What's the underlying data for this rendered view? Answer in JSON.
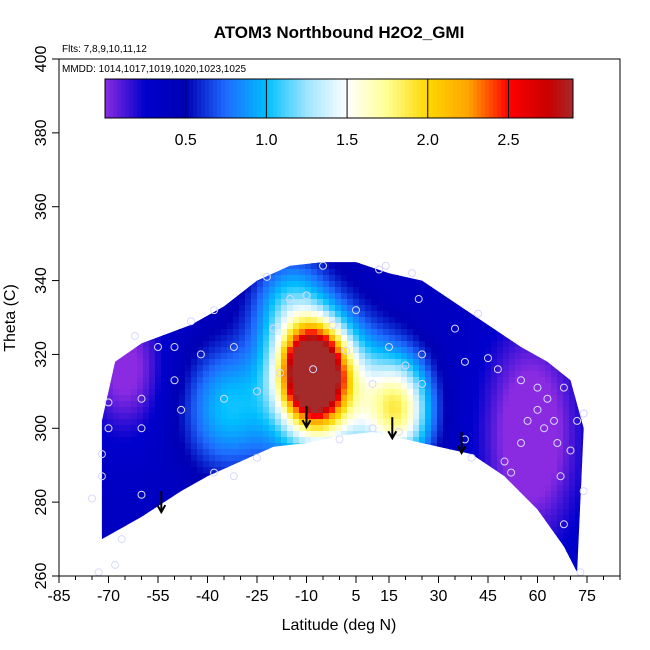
{
  "chart_data": {
    "type": "heatmap",
    "title": "ATOM3 Northbound H2O2_GMI",
    "annotations": {
      "flights": "Flts: 7,8,9,10,11,12",
      "dates": "MMDD: 1014,1017,1019,1020,1023,1025"
    },
    "xlabel": "Latitude (deg N)",
    "ylabel": "Theta (C)",
    "xlim": [
      -85,
      85
    ],
    "ylim": [
      260,
      400
    ],
    "x_ticks": [
      "-85",
      "-70",
      "-55",
      "-40",
      "-25",
      "-10",
      "5",
      "15",
      "30",
      "45",
      "60",
      "75"
    ],
    "y_ticks": [
      "260",
      "280",
      "300",
      "320",
      "340",
      "360",
      "380",
      "400"
    ],
    "colorbar": {
      "range": [
        0,
        2.9
      ],
      "tick_labels": [
        "0.5",
        "1.0",
        "1.5",
        "2.0",
        "2.5"
      ],
      "tick_values": [
        0.5,
        1.0,
        1.5,
        2.0,
        2.5
      ],
      "stops": [
        {
          "v": 0.0,
          "c": "#8a2be2"
        },
        {
          "v": 0.25,
          "c": "#0000cd"
        },
        {
          "v": 0.5,
          "c": "#0000b4"
        },
        {
          "v": 0.75,
          "c": "#1e6cff"
        },
        {
          "v": 1.0,
          "c": "#00bfff"
        },
        {
          "v": 1.25,
          "c": "#9fe4ff"
        },
        {
          "v": 1.5,
          "c": "#ffffff"
        },
        {
          "v": 1.75,
          "c": "#ffff90"
        },
        {
          "v": 2.0,
          "c": "#ffd700"
        },
        {
          "v": 2.25,
          "c": "#ffa500"
        },
        {
          "v": 2.5,
          "c": "#ff0000"
        },
        {
          "v": 2.75,
          "c": "#c80000"
        },
        {
          "v": 2.9,
          "c": "#a52a2a"
        }
      ]
    },
    "coverage": {
      "top": [
        [
          -72,
          302
        ],
        [
          -68,
          318
        ],
        [
          -60,
          323
        ],
        [
          -45,
          328
        ],
        [
          -35,
          333
        ],
        [
          -25,
          340
        ],
        [
          -15,
          344
        ],
        [
          -5,
          345
        ],
        [
          5,
          345
        ],
        [
          15,
          342
        ],
        [
          25,
          340
        ],
        [
          35,
          334
        ],
        [
          45,
          328
        ],
        [
          55,
          322
        ],
        [
          63,
          318
        ],
        [
          70,
          313
        ],
        [
          74,
          300
        ]
      ],
      "bottom": [
        [
          -72,
          270
        ],
        [
          -60,
          276
        ],
        [
          -48,
          283
        ],
        [
          -40,
          287
        ],
        [
          -30,
          291
        ],
        [
          -20,
          295
        ],
        [
          -10,
          296
        ],
        [
          0,
          298
        ],
        [
          10,
          299
        ],
        [
          20,
          297
        ],
        [
          30,
          295
        ],
        [
          40,
          293
        ],
        [
          50,
          287
        ],
        [
          60,
          278
        ],
        [
          68,
          268
        ],
        [
          72,
          261
        ]
      ]
    },
    "field_hotspots": [
      {
        "x": -8,
        "y": 315,
        "v": 2.8,
        "sx": 6,
        "sy": 8
      },
      {
        "x": -5,
        "y": 310,
        "v": 1.4,
        "sx": 12,
        "sy": 14
      },
      {
        "x": 18,
        "y": 305,
        "v": 1.3,
        "sx": 7,
        "sy": 10
      },
      {
        "x": -35,
        "y": 305,
        "v": 0.6,
        "sx": 9,
        "sy": 12
      },
      {
        "x": -15,
        "y": 333,
        "v": 0.6,
        "sx": 8,
        "sy": 10
      },
      {
        "x": 58,
        "y": 298,
        "v": -0.5,
        "sx": 10,
        "sy": 20
      },
      {
        "x": -65,
        "y": 316,
        "v": -0.4,
        "sx": 8,
        "sy": 12
      }
    ],
    "field_base": 0.35,
    "observations": [
      [
        -70,
        307
      ],
      [
        -70,
        300
      ],
      [
        -72,
        293
      ],
      [
        -72,
        287
      ],
      [
        -75,
        281
      ],
      [
        -73,
        261
      ],
      [
        -68,
        263
      ],
      [
        -66,
        270
      ],
      [
        -60,
        282
      ],
      [
        -60,
        300
      ],
      [
        -60,
        308
      ],
      [
        -62,
        325
      ],
      [
        -55,
        322
      ],
      [
        -50,
        322
      ],
      [
        -50,
        313
      ],
      [
        -48,
        305
      ],
      [
        -45,
        329
      ],
      [
        -42,
        320
      ],
      [
        -38,
        332
      ],
      [
        -35,
        308
      ],
      [
        -32,
        322
      ],
      [
        -32,
        287
      ],
      [
        -38,
        288
      ],
      [
        -25,
        310
      ],
      [
        -25,
        292
      ],
      [
        -22,
        341
      ],
      [
        -20,
        327
      ],
      [
        -18,
        315
      ],
      [
        -15,
        335
      ],
      [
        -10,
        336
      ],
      [
        -8,
        316
      ],
      [
        -5,
        344
      ],
      [
        -2,
        328
      ],
      [
        0,
        297
      ],
      [
        2,
        321
      ],
      [
        5,
        332
      ],
      [
        10,
        312
      ],
      [
        10,
        300
      ],
      [
        12,
        343
      ],
      [
        14,
        344
      ],
      [
        15,
        322
      ],
      [
        18,
        299
      ],
      [
        20,
        317
      ],
      [
        22,
        342
      ],
      [
        24,
        335
      ],
      [
        25,
        320
      ],
      [
        25,
        312
      ],
      [
        35,
        327
      ],
      [
        38,
        318
      ],
      [
        38,
        297
      ],
      [
        40,
        292
      ],
      [
        42,
        331
      ],
      [
        45,
        319
      ],
      [
        48,
        316
      ],
      [
        50,
        291
      ],
      [
        52,
        288
      ],
      [
        55,
        313
      ],
      [
        55,
        296
      ],
      [
        57,
        302
      ],
      [
        60,
        311
      ],
      [
        60,
        305
      ],
      [
        62,
        300
      ],
      [
        63,
        308
      ],
      [
        65,
        302
      ],
      [
        66,
        296
      ],
      [
        67,
        287
      ],
      [
        68,
        311
      ],
      [
        68,
        274
      ],
      [
        70,
        294
      ],
      [
        72,
        302
      ],
      [
        74,
        304
      ],
      [
        74,
        283
      ],
      [
        73,
        261
      ]
    ],
    "arrows": [
      [
        -54,
        283
      ],
      [
        -10,
        306
      ],
      [
        16,
        303
      ],
      [
        37,
        299
      ]
    ],
    "grid": false
  }
}
